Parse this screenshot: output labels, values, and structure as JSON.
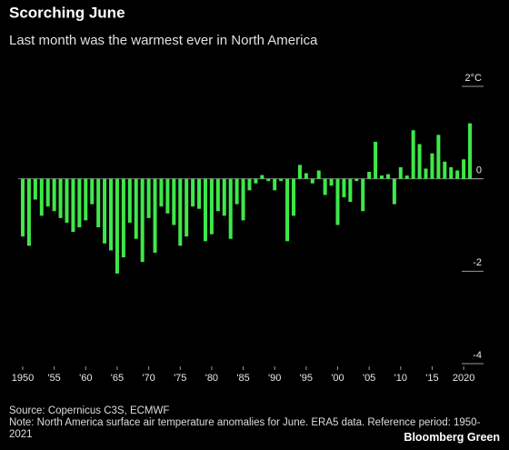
{
  "chart_data": {
    "type": "bar",
    "title": "Scorching June",
    "subtitle": "Last month was the warmest ever in North America",
    "source": "Source: Copernicus C3S, ECMWF",
    "note": "Note: North America surface air temperature anomalies for June. ERA5 data. Reference period: 1950-2021",
    "brand": "Bloomberg Green",
    "categories": [
      "1950",
      null,
      null,
      null,
      null,
      "'55",
      null,
      null,
      null,
      null,
      "'60",
      null,
      null,
      null,
      null,
      "'65",
      null,
      null,
      null,
      null,
      "'70",
      null,
      null,
      null,
      null,
      "'75",
      null,
      null,
      null,
      null,
      "'80",
      null,
      null,
      null,
      null,
      "'85",
      null,
      null,
      null,
      null,
      "'90",
      null,
      null,
      null,
      null,
      "'95",
      null,
      null,
      null,
      null,
      "'00",
      null,
      null,
      null,
      null,
      "'05",
      null,
      null,
      null,
      null,
      "'10",
      null,
      null,
      null,
      null,
      "'15",
      null,
      null,
      null,
      null,
      "2020",
      null
    ],
    "values": [
      -1.25,
      -1.45,
      -0.45,
      -0.8,
      -0.6,
      -0.7,
      -0.85,
      -0.95,
      -1.15,
      -1.05,
      -0.9,
      -0.55,
      -1.05,
      -1.4,
      -1.55,
      -2.05,
      -1.7,
      -0.95,
      -1.3,
      -1.8,
      -0.85,
      -1.6,
      -0.6,
      -0.75,
      -1.0,
      -1.45,
      -1.25,
      -0.6,
      -0.65,
      -1.35,
      -1.2,
      -0.7,
      -0.8,
      -1.3,
      -0.55,
      -0.9,
      -0.25,
      -0.1,
      0.08,
      -0.05,
      -0.25,
      -0.05,
      -1.35,
      -0.8,
      0.3,
      0.12,
      -0.1,
      0.18,
      -0.35,
      -0.15,
      -1.0,
      -0.4,
      -0.5,
      -0.05,
      -0.7,
      0.15,
      0.8,
      0.07,
      0.1,
      -0.55,
      0.25,
      0.07,
      1.05,
      0.75,
      0.22,
      0.55,
      0.95,
      0.37,
      0.25,
      0.18,
      0.42,
      1.2
    ],
    "color": "#3ee84a",
    "ylim": [
      -4,
      2.2
    ],
    "yticks": [
      {
        "value": 2,
        "label": "2°C"
      },
      0,
      -2,
      -4
    ],
    "grid": false
  }
}
